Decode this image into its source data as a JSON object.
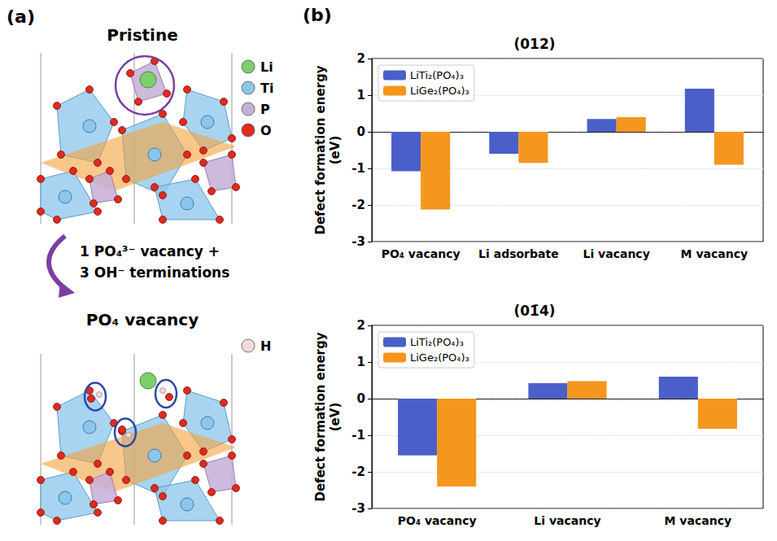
{
  "panel_a": {
    "letter": "(a)",
    "top_title": "Pristine",
    "transition": [
      "1 PO₄³⁻ vacancy +",
      "3 OH⁻ terminations"
    ],
    "bottom_title": "PO₄ vacancy",
    "atoms": [
      {
        "label": "Li",
        "color": "#7dcf6b"
      },
      {
        "label": "Ti",
        "color": "#8cc6ec"
      },
      {
        "label": "P",
        "color": "#c5aed6"
      },
      {
        "label": "O",
        "color": "#e02a1e"
      }
    ],
    "extra_atom": {
      "label": "H",
      "color": "#f2dada"
    }
  },
  "panel_b": {
    "letter": "(b)"
  },
  "chart_data": [
    {
      "type": "bar",
      "title": "(012)",
      "y_label": "Defect formation energy\n(eV)",
      "categories": [
        "PO₄ vacancy",
        "Li adsorbate",
        "Li vacancy",
        "M vacancy"
      ],
      "series": [
        {
          "name": "LiTi₂(PO₄)₃",
          "color": "#4a5fc8",
          "values": [
            -1.08,
            -0.6,
            0.35,
            1.18
          ]
        },
        {
          "name": "LiGe₂(PO₄)₃",
          "color": "#f5961e",
          "values": [
            -2.12,
            -0.85,
            0.4,
            -0.9
          ]
        }
      ],
      "ylim": [
        -3,
        2
      ],
      "yticks": [
        -3,
        -2,
        -1,
        0,
        1,
        2
      ],
      "grid": true,
      "legend": "upper left"
    },
    {
      "type": "bar",
      "title": "(01̄4)",
      "y_label": "Defect formation energy\n(eV)",
      "categories": [
        "PO₄ vacancy",
        "Li vacancy",
        "M vacancy"
      ],
      "series": [
        {
          "name": "LiTi₂(PO₄)₃",
          "color": "#4a5fc8",
          "values": [
            -1.55,
            0.42,
            0.6
          ]
        },
        {
          "name": "LiGe₂(PO₄)₃",
          "color": "#f5961e",
          "values": [
            -2.4,
            0.48,
            -0.82
          ]
        }
      ],
      "ylim": [
        -3,
        2
      ],
      "yticks": [
        -3,
        -2,
        -1,
        0,
        1,
        2
      ],
      "grid": true,
      "legend": "upper left"
    }
  ]
}
